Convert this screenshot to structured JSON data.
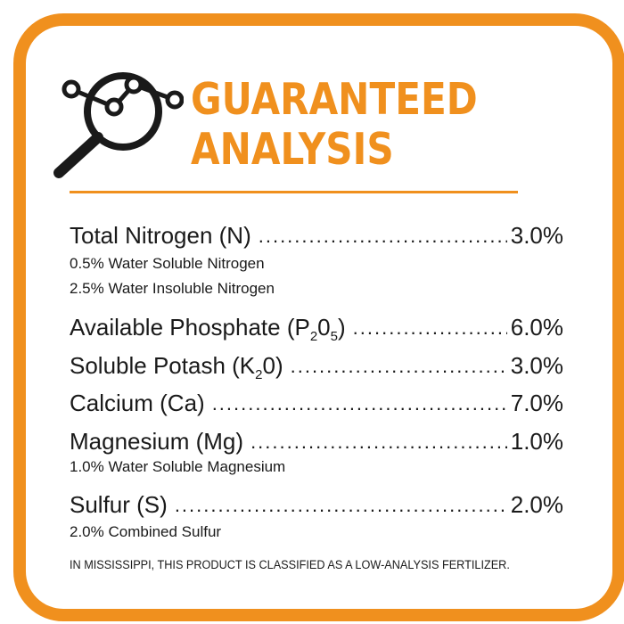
{
  "header": {
    "title_line1": "GUARANTEED",
    "title_line2": "ANALYSIS",
    "icon": "magnifier-chart-icon"
  },
  "colors": {
    "accent": "#f0901e",
    "text": "#1a1a1a",
    "background": "#ffffff"
  },
  "nutrients": [
    {
      "label": "Total Nitrogen (N)",
      "value": "3.0%",
      "notes": [
        "0.5% Water Soluble Nitrogen",
        "2.5% Water Insoluble Nitrogen"
      ]
    },
    {
      "label_pre": "Available Phosphate (P",
      "label_sub1": "2",
      "label_mid": "0",
      "label_sub2": "5",
      "label_post": ")",
      "value": "6.0%"
    },
    {
      "label_pre": "Soluble Potash (K",
      "label_sub1": "2",
      "label_post": "0)",
      "value": "3.0%"
    },
    {
      "label": "Calcium (Ca)",
      "value": "7.0%"
    },
    {
      "label": "Magnesium (Mg)",
      "value": "1.0%",
      "notes": [
        "1.0% Water Soluble Magnesium"
      ]
    },
    {
      "label": "Sulfur (S)",
      "value": "2.0%",
      "notes": [
        "2.0% Combined Sulfur"
      ]
    }
  ],
  "footer": "IN MISSISSIPPI, THIS PRODUCT IS CLASSIFIED AS A LOW-ANALYSIS FERTILIZER."
}
